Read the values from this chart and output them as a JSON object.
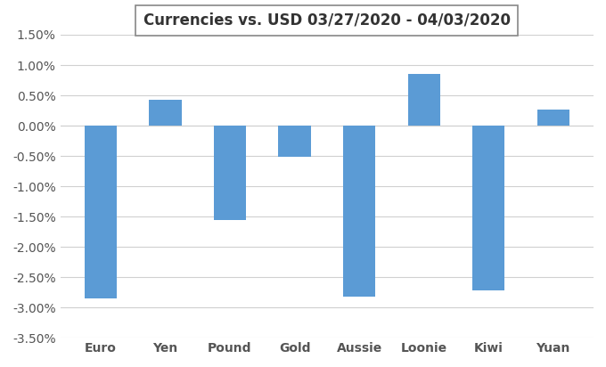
{
  "categories": [
    "Euro",
    "Yen",
    "Pound",
    "Gold",
    "Aussie",
    "Loonie",
    "Kiwi",
    "Yuan"
  ],
  "values": [
    -0.0285,
    0.0043,
    -0.0155,
    -0.0052,
    -0.0282,
    0.0085,
    -0.0272,
    0.0027
  ],
  "bar_color": "#5B9BD5",
  "title": "Currencies vs. USD 03/27/2020 - 04/03/2020",
  "ylim_min": -0.035,
  "ylim_max": 0.015,
  "ytick_values": [
    -0.035,
    -0.03,
    -0.025,
    -0.02,
    -0.015,
    -0.01,
    -0.005,
    0.0,
    0.005,
    0.01,
    0.015
  ],
  "ytick_labels": [
    "-3.50%",
    "-3.00%",
    "-2.50%",
    "-2.00%",
    "-1.50%",
    "-1.00%",
    "-0.50%",
    "0.00%",
    "0.50%",
    "1.00%",
    "1.50%"
  ],
  "background_color": "#FFFFFF",
  "grid_color": "#D0D0D0",
  "title_fontsize": 12,
  "tick_fontsize": 10,
  "bar_width": 0.5
}
